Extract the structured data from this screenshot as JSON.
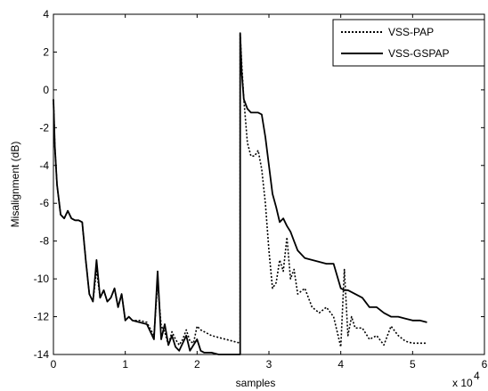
{
  "chart_data": {
    "type": "line",
    "title": "",
    "xlabel": "samples",
    "ylabel": "Misalignment (dB)",
    "x_exponent_label": "x 10",
    "x_exponent_power": "4",
    "xlim": [
      0,
      6
    ],
    "ylim": [
      -14,
      4
    ],
    "xticks": [
      "0",
      "1",
      "2",
      "3",
      "4",
      "5",
      "6"
    ],
    "yticks": [
      "4",
      "2",
      "0",
      "-2",
      "-4",
      "-6",
      "-8",
      "-10",
      "-12",
      "-14"
    ],
    "grid": false,
    "legend_position": "top-right",
    "series": [
      {
        "name": "VSS-PAP",
        "style": "dotted",
        "color": "#000000",
        "x": [
          0.0,
          0.02,
          0.05,
          0.1,
          0.15,
          0.2,
          0.25,
          0.3,
          0.35,
          0.4,
          0.45,
          0.5,
          0.55,
          0.6,
          0.65,
          0.7,
          0.75,
          0.8,
          0.85,
          0.9,
          0.95,
          1.0,
          1.05,
          1.1,
          1.2,
          1.3,
          1.4,
          1.45,
          1.5,
          1.55,
          1.6,
          1.65,
          1.7,
          1.75,
          1.8,
          1.85,
          1.9,
          1.95,
          2.0,
          2.05,
          2.1,
          2.2,
          2.3,
          2.4,
          2.5,
          2.6,
          2.6,
          2.62,
          2.65,
          2.7,
          2.75,
          2.8,
          2.85,
          2.9,
          2.95,
          3.0,
          3.05,
          3.1,
          3.15,
          3.2,
          3.25,
          3.3,
          3.35,
          3.4,
          3.5,
          3.6,
          3.7,
          3.8,
          3.9,
          4.0,
          4.05,
          4.1,
          4.15,
          4.2,
          4.3,
          4.4,
          4.5,
          4.6,
          4.7,
          4.8,
          4.9,
          5.0,
          5.1,
          5.2
        ],
        "values": [
          -0.5,
          -3.0,
          -5.0,
          -6.6,
          -6.8,
          -6.4,
          -6.8,
          -6.9,
          -6.9,
          -7.0,
          -9.0,
          -10.8,
          -11.2,
          -9.5,
          -11.0,
          -10.6,
          -11.2,
          -11.0,
          -10.5,
          -11.5,
          -10.8,
          -12.2,
          -12.0,
          -12.2,
          -12.2,
          -12.3,
          -13.0,
          -10.2,
          -12.5,
          -12.8,
          -13.5,
          -12.8,
          -13.2,
          -13.5,
          -13.2,
          -12.7,
          -13.3,
          -13.4,
          -12.5,
          -12.7,
          -12.8,
          -13.0,
          -13.1,
          -13.2,
          -13.3,
          -13.4,
          3.0,
          1.5,
          -0.5,
          -2.8,
          -3.5,
          -3.5,
          -3.2,
          -4.2,
          -6.0,
          -8.5,
          -10.5,
          -10.2,
          -9.0,
          -9.6,
          -7.8,
          -10.0,
          -9.5,
          -10.8,
          -10.5,
          -11.5,
          -11.8,
          -11.5,
          -12.0,
          -13.6,
          -9.5,
          -13.0,
          -12.0,
          -12.6,
          -12.6,
          -13.2,
          -13.0,
          -13.5,
          -12.5,
          -13.0,
          -13.3,
          -13.4,
          -13.4,
          -13.4
        ]
      },
      {
        "name": "VSS-GSPAP",
        "style": "solid",
        "color": "#000000",
        "x": [
          0.0,
          0.02,
          0.05,
          0.1,
          0.15,
          0.2,
          0.25,
          0.3,
          0.35,
          0.4,
          0.45,
          0.5,
          0.55,
          0.6,
          0.65,
          0.7,
          0.75,
          0.8,
          0.85,
          0.9,
          0.95,
          1.0,
          1.05,
          1.1,
          1.2,
          1.3,
          1.4,
          1.45,
          1.5,
          1.55,
          1.6,
          1.65,
          1.7,
          1.75,
          1.8,
          1.85,
          1.9,
          1.95,
          2.0,
          2.05,
          2.1,
          2.2,
          2.3,
          2.4,
          2.5,
          2.6,
          2.6,
          2.62,
          2.65,
          2.7,
          2.75,
          2.8,
          2.85,
          2.9,
          2.95,
          3.0,
          3.05,
          3.1,
          3.15,
          3.2,
          3.25,
          3.3,
          3.35,
          3.4,
          3.5,
          3.6,
          3.7,
          3.8,
          3.9,
          4.0,
          4.05,
          4.1,
          4.2,
          4.3,
          4.4,
          4.5,
          4.6,
          4.7,
          4.8,
          4.9,
          5.0,
          5.1,
          5.2
        ],
        "values": [
          -0.5,
          -3.0,
          -5.0,
          -6.6,
          -6.8,
          -6.4,
          -6.8,
          -6.9,
          -6.9,
          -7.0,
          -9.0,
          -10.8,
          -11.2,
          -9.0,
          -11.0,
          -10.6,
          -11.2,
          -11.0,
          -10.5,
          -11.5,
          -10.8,
          -12.2,
          -12.0,
          -12.2,
          -12.3,
          -12.4,
          -13.2,
          -9.6,
          -13.2,
          -12.4,
          -13.5,
          -13.0,
          -13.6,
          -13.8,
          -13.4,
          -13.0,
          -13.8,
          -13.5,
          -13.2,
          -13.8,
          -13.9,
          -13.9,
          -14.0,
          -14.0,
          -14.0,
          -14.0,
          3.0,
          1.0,
          -0.5,
          -1.0,
          -1.2,
          -1.2,
          -1.2,
          -1.3,
          -2.5,
          -4.0,
          -5.5,
          -6.2,
          -7.0,
          -6.8,
          -7.2,
          -7.5,
          -8.0,
          -8.5,
          -8.9,
          -9.0,
          -9.1,
          -9.2,
          -9.2,
          -10.5,
          -10.6,
          -10.6,
          -10.8,
          -11.0,
          -11.5,
          -11.5,
          -11.8,
          -12.0,
          -12.0,
          -12.1,
          -12.2,
          -12.2,
          -12.3
        ]
      }
    ]
  }
}
